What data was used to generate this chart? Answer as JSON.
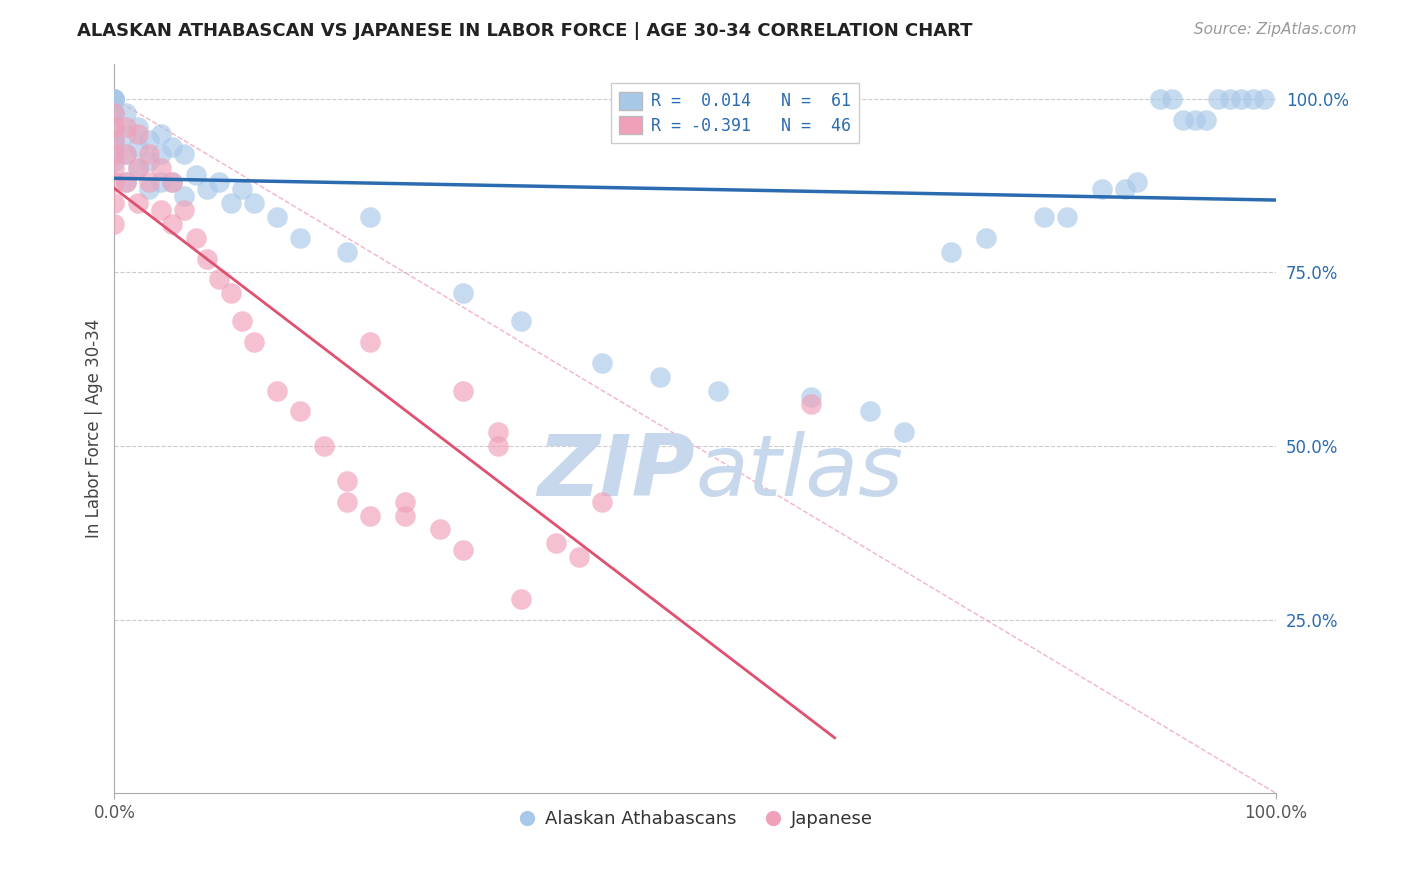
{
  "title": "ALASKAN ATHABASCAN VS JAPANESE IN LABOR FORCE | AGE 30-34 CORRELATION CHART",
  "source": "Source: ZipAtlas.com",
  "ylabel": "In Labor Force | Age 30-34",
  "ylabel_right_ticks": [
    "25.0%",
    "50.0%",
    "75.0%",
    "100.0%"
  ],
  "ylabel_right_values": [
    0.25,
    0.5,
    0.75,
    1.0
  ],
  "legend_blue_label": "R =  0.014   N =  61",
  "legend_pink_label": "R = -0.391   N =  46",
  "legend_bottom_blue": "Alaskan Athabascans",
  "legend_bottom_pink": "Japanese",
  "blue_color": "#A8C8E8",
  "pink_color": "#F0A0B8",
  "blue_line_color": "#2B6CB0",
  "pink_line_color": "#E05070",
  "diag_line_color": "#F0A0B8",
  "xlim": [
    0.0,
    1.0
  ],
  "ylim": [
    0.0,
    1.05
  ],
  "bg_color": "#FFFFFF",
  "grid_color": "#CCCCCC",
  "watermark_zip": "ZIP",
  "watermark_atlas": "atlas",
  "watermark_color": "#C8D8EC",
  "blue_x": [
    0.0,
    0.0,
    0.0,
    0.0,
    0.0,
    0.0,
    0.0,
    0.0,
    0.0,
    0.01,
    0.01,
    0.01,
    0.01,
    0.02,
    0.02,
    0.02,
    0.03,
    0.03,
    0.03,
    0.04,
    0.04,
    0.04,
    0.05,
    0.05,
    0.06,
    0.06,
    0.07,
    0.08,
    0.09,
    0.1,
    0.11,
    0.12,
    0.14,
    0.16,
    0.2,
    0.22,
    0.3,
    0.35,
    0.42,
    0.47,
    0.52,
    0.6,
    0.65,
    0.68,
    0.72,
    0.75,
    0.8,
    0.82,
    0.85,
    0.87,
    0.88,
    0.9,
    0.91,
    0.92,
    0.93,
    0.94,
    0.95,
    0.96,
    0.97,
    0.98,
    0.99
  ],
  "blue_y": [
    1.0,
    1.0,
    1.0,
    1.0,
    0.98,
    0.96,
    0.94,
    0.93,
    0.91,
    0.98,
    0.95,
    0.92,
    0.88,
    0.96,
    0.93,
    0.9,
    0.94,
    0.91,
    0.87,
    0.95,
    0.92,
    0.88,
    0.93,
    0.88,
    0.92,
    0.86,
    0.89,
    0.87,
    0.88,
    0.85,
    0.87,
    0.85,
    0.83,
    0.8,
    0.78,
    0.83,
    0.72,
    0.68,
    0.62,
    0.6,
    0.58,
    0.57,
    0.55,
    0.52,
    0.78,
    0.8,
    0.83,
    0.83,
    0.87,
    0.87,
    0.88,
    1.0,
    1.0,
    0.97,
    0.97,
    0.97,
    1.0,
    1.0,
    1.0,
    1.0,
    1.0
  ],
  "pink_x": [
    0.0,
    0.0,
    0.0,
    0.0,
    0.0,
    0.0,
    0.0,
    0.0,
    0.01,
    0.01,
    0.01,
    0.02,
    0.02,
    0.02,
    0.03,
    0.03,
    0.04,
    0.04,
    0.05,
    0.05,
    0.06,
    0.07,
    0.08,
    0.09,
    0.1,
    0.11,
    0.12,
    0.14,
    0.16,
    0.18,
    0.2,
    0.22,
    0.25,
    0.28,
    0.3,
    0.33,
    0.33,
    0.22,
    0.3,
    0.35,
    0.38,
    0.4,
    0.42,
    0.2,
    0.25,
    0.6
  ],
  "pink_y": [
    0.98,
    0.96,
    0.94,
    0.92,
    0.9,
    0.88,
    0.85,
    0.82,
    0.96,
    0.92,
    0.88,
    0.95,
    0.9,
    0.85,
    0.92,
    0.88,
    0.9,
    0.84,
    0.88,
    0.82,
    0.84,
    0.8,
    0.77,
    0.74,
    0.72,
    0.68,
    0.65,
    0.58,
    0.55,
    0.5,
    0.45,
    0.4,
    0.42,
    0.38,
    0.35,
    0.52,
    0.5,
    0.65,
    0.58,
    0.28,
    0.36,
    0.34,
    0.42,
    0.42,
    0.4,
    0.56
  ]
}
